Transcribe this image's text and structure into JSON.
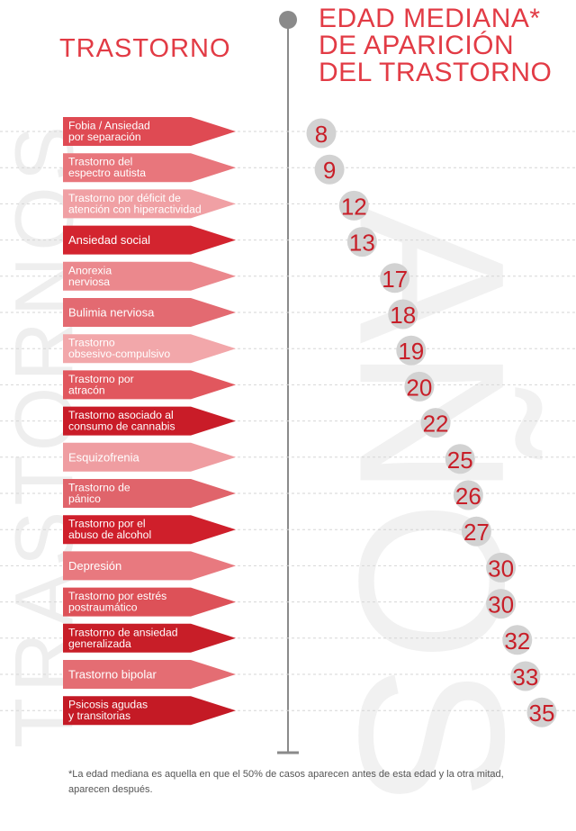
{
  "background": {
    "left_word": "TRASTORNOS",
    "right_word": "AÑOS"
  },
  "header": {
    "left_title": "TRASTORNO",
    "right_title": [
      "EDAD MEDIANA*",
      "DE APARICIÓN",
      "DEL TRASTORNO"
    ]
  },
  "colors": {
    "title": "#e23b45",
    "axis": "#8a8a8a",
    "dashed_line": "#d6d6d6",
    "bubble": "#d2d2d2",
    "value_text": "#c81e28"
  },
  "chart_data": {
    "type": "scatter",
    "categories": [
      [
        "Fobia / Ansiedad",
        "por separación"
      ],
      [
        "Trastorno del",
        "espectro autista"
      ],
      [
        "Trastorno por déficit de",
        "atención con hiperactividad"
      ],
      [
        "Ansiedad social"
      ],
      [
        "Anorexia",
        "nerviosa"
      ],
      [
        "Bulimia nerviosa"
      ],
      [
        "Trastorno",
        "obsesivo-compulsivo"
      ],
      [
        "Trastorno por",
        "atracón"
      ],
      [
        "Trastorno asociado al",
        "consumo de cannabis"
      ],
      [
        "Esquizofrenia"
      ],
      [
        "Trastorno de",
        "pánico"
      ],
      [
        "Trastorno por el",
        "abuso de alcohol"
      ],
      [
        "Depresión"
      ],
      [
        "Trastorno por estrés",
        "postraumático"
      ],
      [
        "Trastorno de ansiedad",
        "generalizada"
      ],
      [
        "Trastorno bipolar"
      ],
      [
        "Psicosis agudas",
        "y transitorias"
      ]
    ],
    "values": [
      8,
      9,
      12,
      13,
      17,
      18,
      19,
      20,
      22,
      25,
      26,
      27,
      30,
      30,
      32,
      33,
      35
    ],
    "bar_colors": [
      "#df4a53",
      "#e8767c",
      "#f0a0a4",
      "#d3242f",
      "#eb888d",
      "#e36a71",
      "#f2a7aa",
      "#e1575e",
      "#c91c28",
      "#ef9da1",
      "#e0646b",
      "#cf1f2b",
      "#e8797f",
      "#dd5158",
      "#c81e28",
      "#e46d73",
      "#c41a25"
    ],
    "xlim": [
      8,
      35
    ]
  },
  "footnote": "*La edad mediana es aquella en que el 50% de casos aparecen antes de esta edad y la otra mitad, aparecen después."
}
